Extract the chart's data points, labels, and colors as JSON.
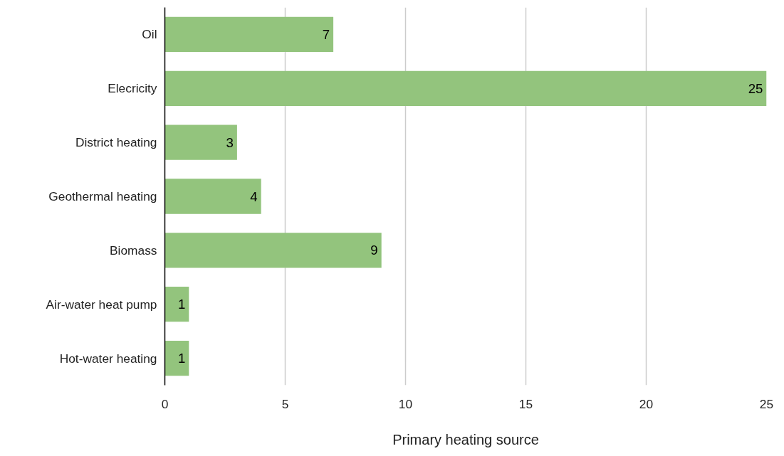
{
  "chart_data": {
    "type": "bar",
    "orientation": "horizontal",
    "xlabel": "Primary heating source",
    "categories": [
      "Oil",
      "Elecricity",
      "District heating",
      "Geothermal heating",
      "Biomass",
      "Air-water heat pump",
      "Hot-water heating"
    ],
    "values": [
      7,
      25,
      3,
      4,
      9,
      1,
      1
    ],
    "color": "#93c47d",
    "xlim": [
      0,
      25
    ],
    "xticks": [
      0,
      5,
      10,
      15,
      20,
      25
    ],
    "grid": "x",
    "data_labels": true
  }
}
